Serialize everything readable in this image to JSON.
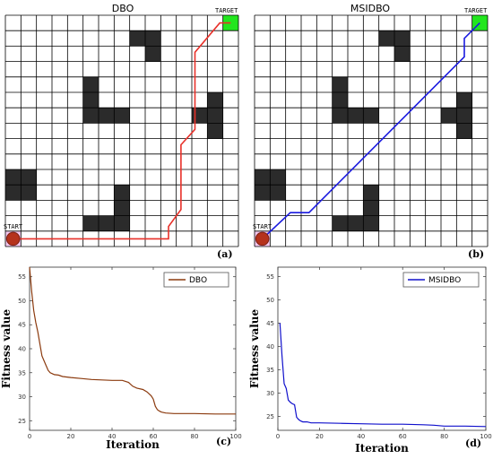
{
  "maps": [
    {
      "title": "DBO",
      "tag": "(a)",
      "start_label": "START",
      "target_label": "TARGET",
      "path_color": "#e8312a",
      "rows": 15,
      "cols": 15,
      "obstacles": [
        [
          8,
          1
        ],
        [
          9,
          1
        ],
        [
          9,
          2
        ],
        [
          5,
          4
        ],
        [
          5,
          5
        ],
        [
          5,
          6
        ],
        [
          6,
          6
        ],
        [
          7,
          6
        ],
        [
          13,
          5
        ],
        [
          13,
          6
        ],
        [
          12,
          6
        ],
        [
          13,
          7
        ],
        [
          0,
          10
        ],
        [
          1,
          10
        ],
        [
          0,
          11
        ],
        [
          1,
          11
        ],
        [
          7,
          11
        ],
        [
          7,
          12
        ],
        [
          7,
          13
        ],
        [
          6,
          13
        ],
        [
          5,
          13
        ]
      ],
      "start_cell": [
        0,
        14
      ],
      "target_cell": [
        14,
        0
      ],
      "path": [
        [
          0.5,
          14.5
        ],
        [
          10.5,
          14.5
        ],
        [
          10.5,
          13.7
        ],
        [
          11.3,
          12.6
        ],
        [
          11.3,
          8.4
        ],
        [
          12.2,
          7.4
        ],
        [
          12.2,
          2.4
        ],
        [
          13.8,
          0.5
        ],
        [
          14.5,
          0.5
        ]
      ]
    },
    {
      "title": "MSIDBO",
      "tag": "(b)",
      "start_label": "START",
      "target_label": "TARGET",
      "path_color": "#1a1adf",
      "rows": 15,
      "cols": 15,
      "obstacles": [
        [
          8,
          1
        ],
        [
          9,
          1
        ],
        [
          9,
          2
        ],
        [
          5,
          4
        ],
        [
          5,
          5
        ],
        [
          5,
          6
        ],
        [
          6,
          6
        ],
        [
          7,
          6
        ],
        [
          13,
          5
        ],
        [
          13,
          6
        ],
        [
          12,
          6
        ],
        [
          13,
          7
        ],
        [
          0,
          10
        ],
        [
          1,
          10
        ],
        [
          0,
          11
        ],
        [
          1,
          11
        ],
        [
          7,
          11
        ],
        [
          7,
          12
        ],
        [
          7,
          13
        ],
        [
          6,
          13
        ],
        [
          5,
          13
        ]
      ],
      "start_cell": [
        0,
        14
      ],
      "target_cell": [
        14,
        0
      ],
      "path": [
        [
          0.5,
          14.5
        ],
        [
          2.3,
          12.8
        ],
        [
          3.5,
          12.8
        ],
        [
          13.5,
          2.7
        ],
        [
          13.5,
          1.5
        ],
        [
          14.5,
          0.5
        ]
      ]
    }
  ],
  "chart_data": [
    {
      "type": "line",
      "tag": "(c)",
      "xlabel": "Iteration",
      "ylabel": "Fitness value",
      "xlim": [
        0,
        100
      ],
      "ylim": [
        23,
        57
      ],
      "xticks": [
        0,
        20,
        40,
        60,
        80,
        100
      ],
      "yticks": [
        25,
        30,
        35,
        40,
        45,
        50,
        55
      ],
      "legend_position": "top-right",
      "series": [
        {
          "name": "DBO",
          "color": "#8b3a0e",
          "x": [
            0,
            1,
            2,
            3,
            4,
            5,
            6,
            7,
            8,
            9,
            10,
            11,
            12,
            14,
            16,
            20,
            25,
            30,
            35,
            40,
            45,
            48,
            50,
            52,
            55,
            57,
            59,
            60,
            61,
            62,
            63,
            64,
            65,
            66,
            70,
            80,
            90,
            100
          ],
          "y": [
            57,
            52,
            48,
            45.5,
            43.5,
            41,
            38.5,
            37.5,
            36.5,
            35.5,
            35,
            34.8,
            34.6,
            34.5,
            34.2,
            34,
            33.8,
            33.6,
            33.5,
            33.4,
            33.4,
            33,
            32.2,
            31.8,
            31.5,
            31,
            30.2,
            29.5,
            28,
            27.3,
            27,
            26.8,
            26.7,
            26.6,
            26.5,
            26.5,
            26.4,
            26.4
          ]
        }
      ]
    },
    {
      "type": "line",
      "tag": "(d)",
      "xlabel": "Iteration",
      "ylabel": "Fitness value",
      "xlim": [
        0,
        100
      ],
      "ylim": [
        22,
        57
      ],
      "xticks": [
        0,
        20,
        40,
        60,
        80,
        100
      ],
      "yticks": [
        25,
        30,
        35,
        40,
        45,
        50,
        55
      ],
      "legend_position": "top-right",
      "series": [
        {
          "name": "MSIDBO",
          "color": "#1010cc",
          "x": [
            1,
            2,
            3,
            4,
            5,
            6,
            7,
            8,
            9,
            10,
            11,
            12,
            14,
            16,
            20,
            30,
            40,
            50,
            60,
            70,
            75,
            80,
            90,
            100
          ],
          "y": [
            45,
            38,
            32,
            31,
            28.5,
            28,
            27.7,
            27.5,
            24.8,
            24.3,
            24,
            23.8,
            23.8,
            23.6,
            23.6,
            23.5,
            23.4,
            23.3,
            23.3,
            23.2,
            23.1,
            22.9,
            22.9,
            22.8
          ]
        }
      ]
    }
  ]
}
